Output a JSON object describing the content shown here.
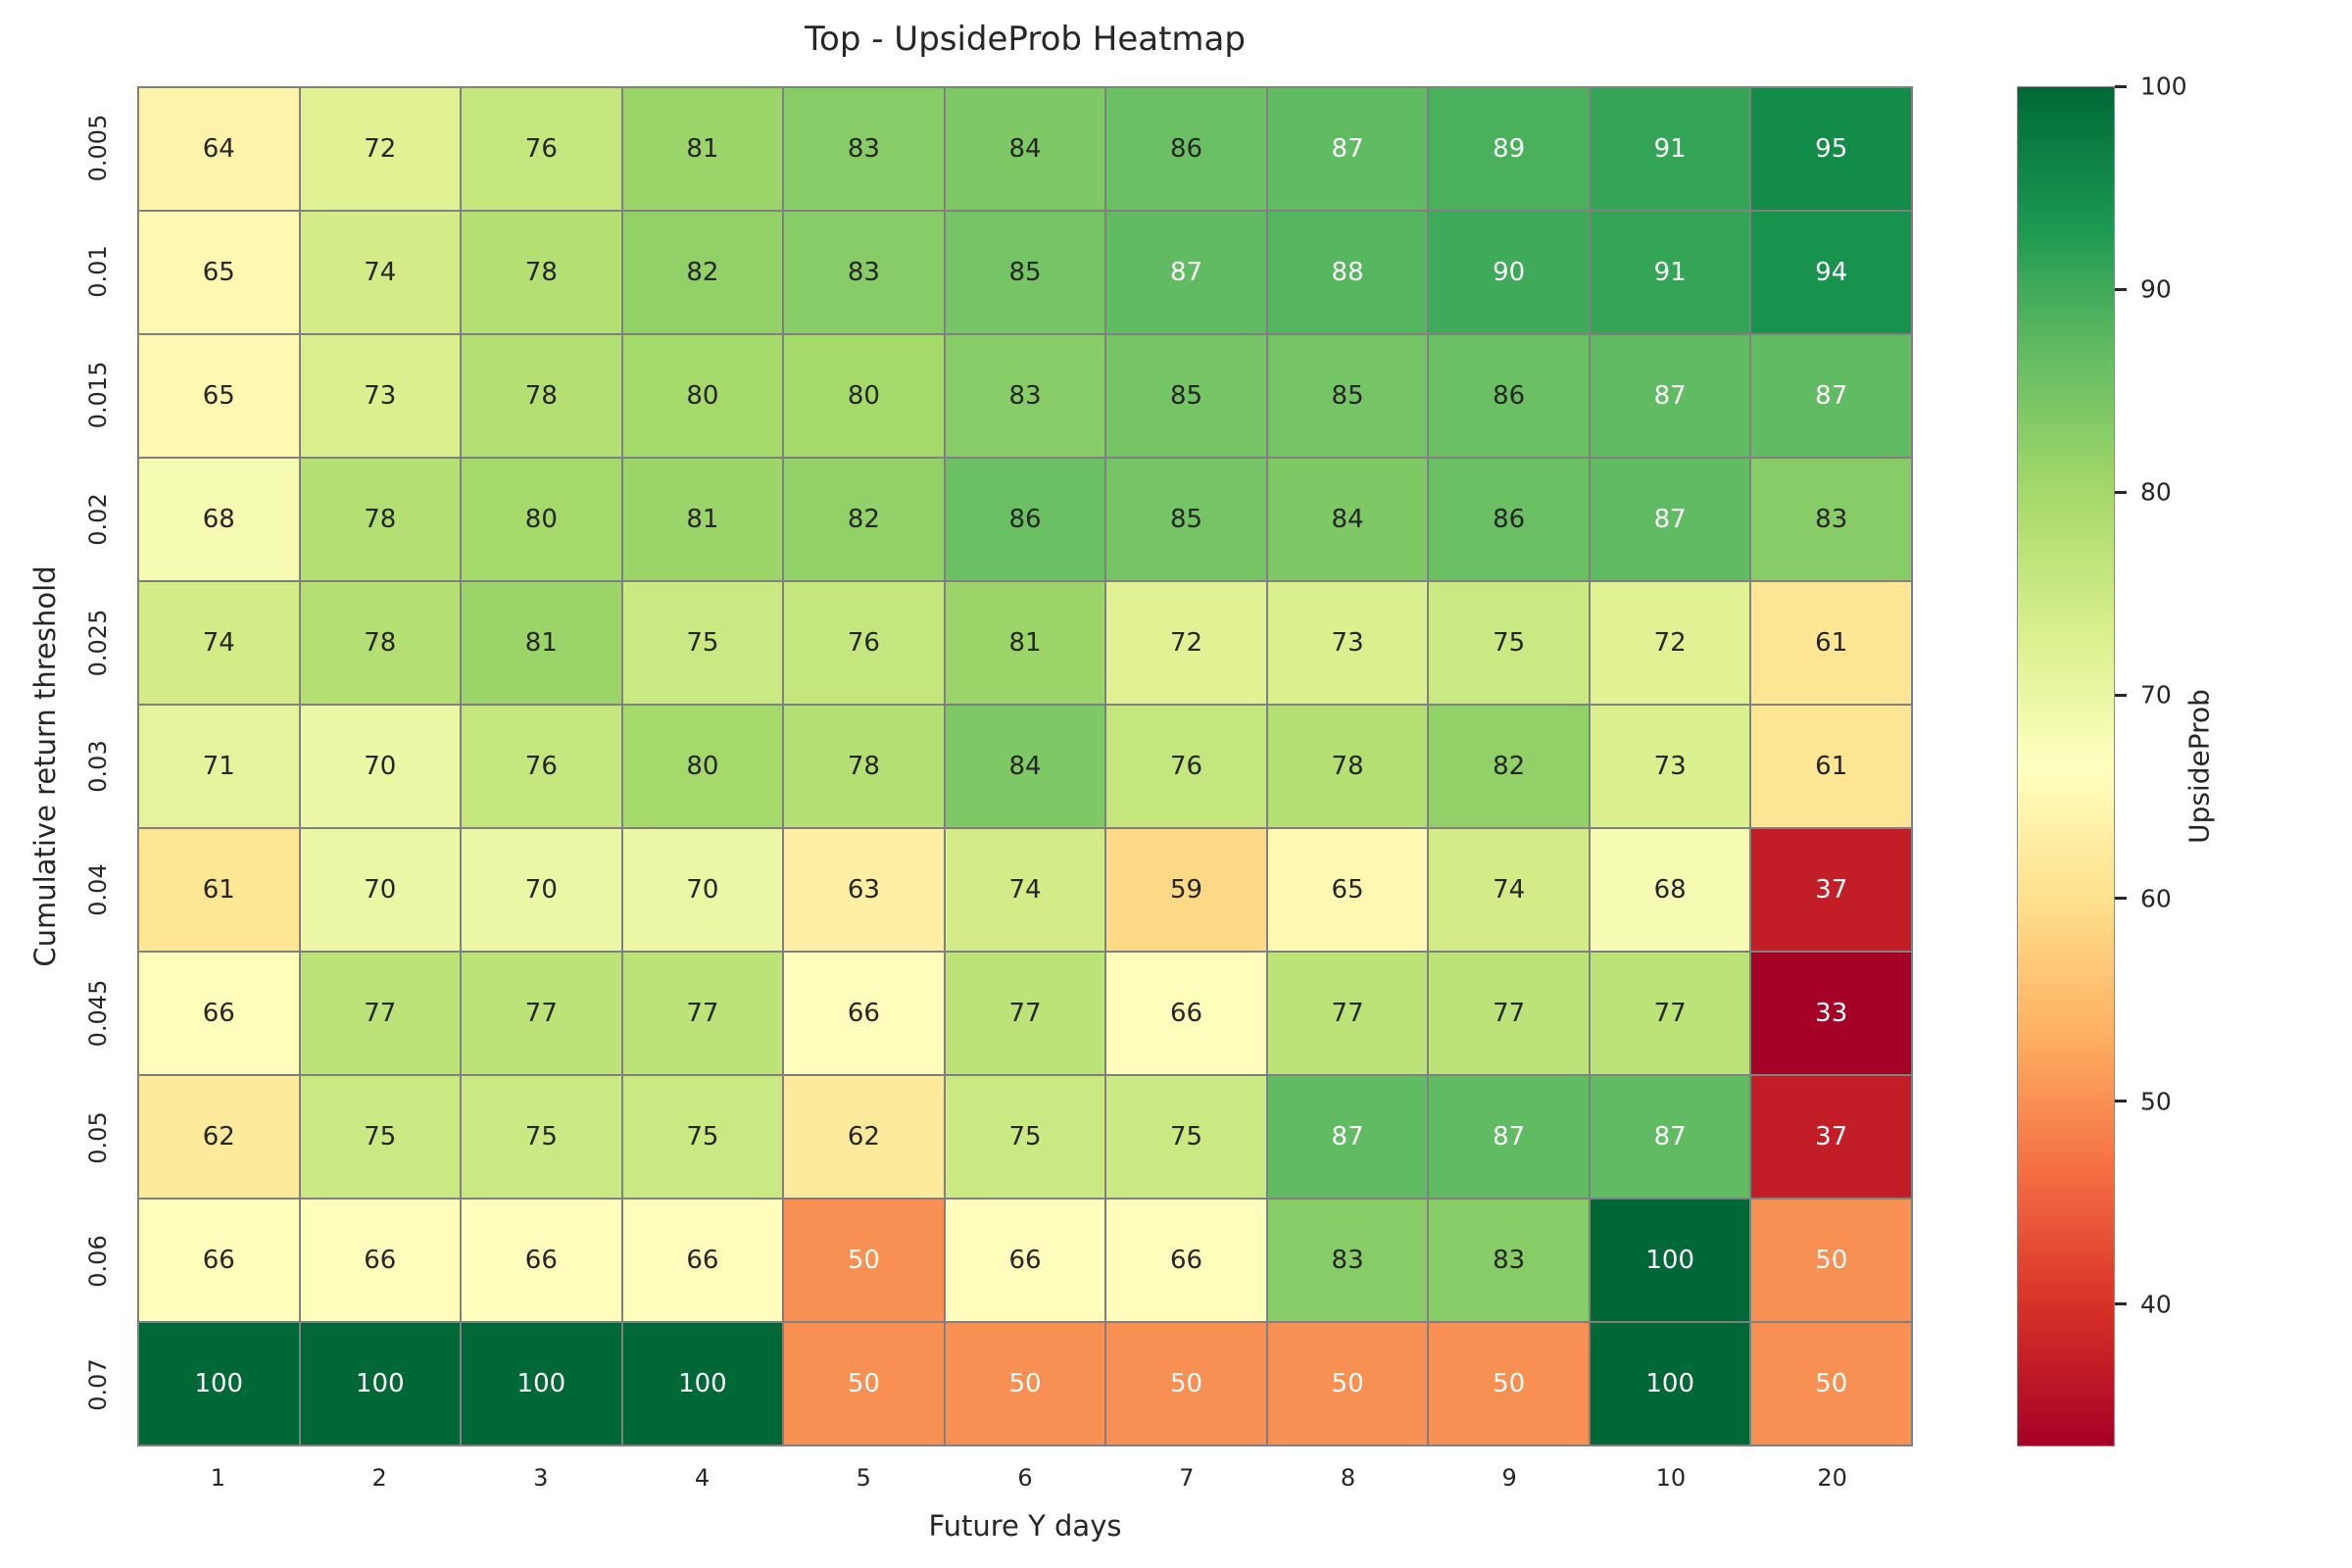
{
  "chart_data": {
    "type": "heatmap",
    "title": "Top - UpsideProb Heatmap",
    "xlabel": "Future Y days",
    "ylabel": "Cumulative return threshold",
    "x_categories": [
      "1",
      "2",
      "3",
      "4",
      "5",
      "6",
      "7",
      "8",
      "9",
      "10",
      "20"
    ],
    "y_categories": [
      "0.005",
      "0.01",
      "0.015",
      "0.02",
      "0.025",
      "0.03",
      "0.04",
      "0.045",
      "0.05",
      "0.06",
      "0.07"
    ],
    "values": [
      [
        64,
        72,
        76,
        81,
        83,
        84,
        86,
        87,
        89,
        91,
        95
      ],
      [
        65,
        74,
        78,
        82,
        83,
        85,
        87,
        88,
        90,
        91,
        94
      ],
      [
        65,
        73,
        78,
        80,
        80,
        83,
        85,
        85,
        86,
        87,
        87
      ],
      [
        68,
        78,
        80,
        81,
        82,
        86,
        85,
        84,
        86,
        87,
        83
      ],
      [
        74,
        78,
        81,
        75,
        76,
        81,
        72,
        73,
        75,
        72,
        61
      ],
      [
        71,
        70,
        76,
        80,
        78,
        84,
        76,
        78,
        82,
        73,
        61
      ],
      [
        61,
        70,
        70,
        70,
        63,
        74,
        59,
        65,
        74,
        68,
        37
      ],
      [
        66,
        77,
        77,
        77,
        66,
        77,
        66,
        77,
        77,
        77,
        33
      ],
      [
        62,
        75,
        75,
        75,
        62,
        75,
        75,
        87,
        87,
        87,
        37
      ],
      [
        66,
        66,
        66,
        66,
        50,
        66,
        66,
        83,
        83,
        100,
        50
      ],
      [
        100,
        100,
        100,
        100,
        50,
        50,
        50,
        50,
        50,
        100,
        50
      ]
    ],
    "colorbar": {
      "label": "UpsideProb",
      "ticks": [
        100,
        90,
        80,
        70,
        60,
        50,
        40
      ],
      "vmin": 33,
      "vmax": 100
    },
    "colormap": {
      "name": "RdYlGn",
      "stops": [
        {
          "pos": 0.0,
          "color": "#a50026"
        },
        {
          "pos": 0.1,
          "color": "#d73027"
        },
        {
          "pos": 0.2,
          "color": "#f46d43"
        },
        {
          "pos": 0.3,
          "color": "#fdae61"
        },
        {
          "pos": 0.4,
          "color": "#fee08b"
        },
        {
          "pos": 0.5,
          "color": "#ffffbf"
        },
        {
          "pos": 0.6,
          "color": "#d9ef8b"
        },
        {
          "pos": 0.7,
          "color": "#a6d96a"
        },
        {
          "pos": 0.8,
          "color": "#66bd63"
        },
        {
          "pos": 0.9,
          "color": "#1a9850"
        },
        {
          "pos": 1.0,
          "color": "#006837"
        }
      ]
    },
    "grid_line_color": "#808080",
    "text_colors": {
      "dark": "#262626",
      "light": "#ffffff"
    },
    "background_color": "#ffffff"
  }
}
